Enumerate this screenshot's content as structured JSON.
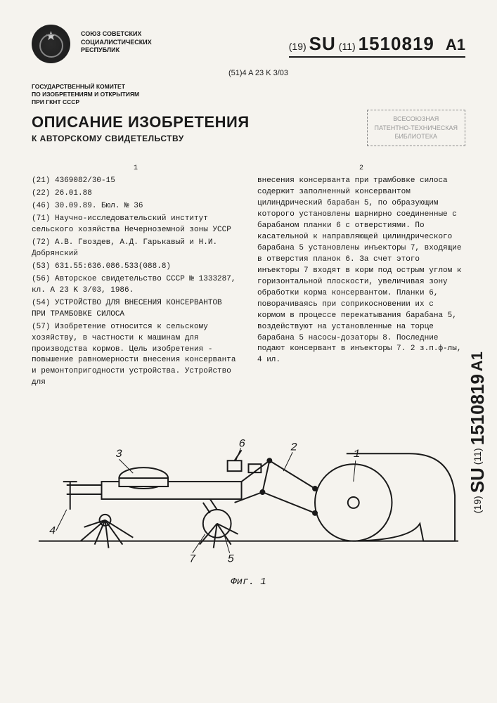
{
  "header": {
    "union_text": "СОЮЗ СОВЕТСКИХ\nСОЦИАЛИСТИЧЕСКИХ\nРЕСПУБЛИК",
    "doc_code_prefix": "(19)",
    "doc_code_country": "SU",
    "doc_code_mid": "(11)",
    "doc_number": "1510819",
    "doc_suffix": "A1",
    "classification_prefix": "(51)4",
    "classification": "A 23 K 3/03",
    "committee": "ГОСУДАРСТВЕННЫЙ КОМИТЕТ\nПО ИЗОБРЕТЕНИЯМ И ОТКРЫТИЯМ\nПРИ ГКНТ СССР",
    "main_title": "ОПИСАНИЕ ИЗОБРЕТЕНИЯ",
    "subtitle": "К АВТОРСКОМУ СВИДЕТЕЛЬСТВУ",
    "stamp_line1": "ВСЕСОЮЗНАЯ",
    "stamp_line2": "ПАТЕНТНО-ТЕХНИЧЕСКАЯ",
    "stamp_line3": "БИБЛИОТЕКА"
  },
  "columns": {
    "col1_num": "1",
    "col2_num": "2",
    "col1_lines": [
      "(21) 4369082/30-15",
      "(22) 26.01.88",
      "(46) 30.09.89. Бюл. № 36",
      "(71) Научно-исследовательский институт сельского хозяйства Нечерноземной зоны УССР",
      "(72) А.В. Гвоздев, А.Д. Гарькавый и Н.И. Добрянский",
      "(53) 631.55:636.086.533(088.8)",
      "(56) Авторское свидетельство СССР № 1333287, кл. A 23 K 3/03, 1986.",
      "(54) УСТРОЙСТВО ДЛЯ ВНЕСЕНИЯ КОНСЕРВАНТОВ ПРИ ТРАМБОВКЕ СИЛОСА",
      "(57) Изобретение относится к сельскому хозяйству, в частности к машинам для производства кормов. Цель изобретения - повышение равномерности внесения консерванта и ремонтопригодности устройства. Устройство для"
    ],
    "col2_text": "внесения консерванта при трамбовке силоса содержит заполненный консервантом цилиндрический барабан 5, по образующим которого установлены шарнирно соединенные с барабаном планки 6 с отверстиями. По касательной к направляющей цилиндрического барабана 5 установлены инъекторы 7, входящие в отверстия планок 6. За счет этого инъекторы 7 входят в корм под острым углом к горизонтальной плоскости, увеличивая зону обработки корма консервантом. Планки 6, поворачиваясь при соприкосновении их с кормом в процессе перекатывания барабана 5, воздействуют на установленные на торце барабана 5 насосы-дозаторы 8. Последние подают консервант в инъекторы 7. 2 з.п.ф-лы, 4 ил."
  },
  "figure": {
    "caption": "Фиг. 1",
    "labels": {
      "l1": "1",
      "l2": "2",
      "l3": "3",
      "l4": "4",
      "l5": "5",
      "l6": "6",
      "l7": "7"
    },
    "stroke_color": "#1a1a1a",
    "stroke_width": 2
  },
  "side": {
    "prefix": "(19)",
    "country": "SU",
    "mid": "(11)",
    "number": "1510819",
    "suffix": "A1"
  }
}
